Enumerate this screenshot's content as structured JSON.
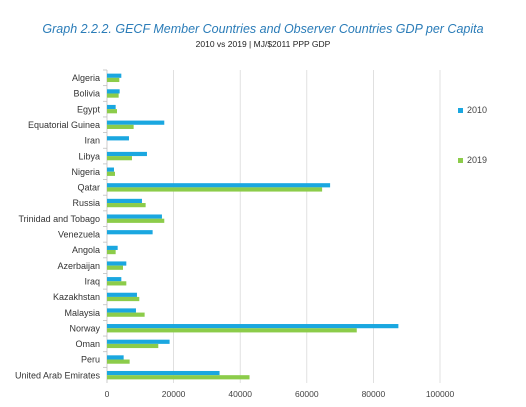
{
  "chart_data": {
    "type": "bar",
    "orientation": "horizontal",
    "title": "Graph 2.2.2. GECF Member Countries and Observer Countries GDP per Capita",
    "subtitle": "2010 vs 2019 | MJ/$2011 PPP GDP",
    "categories": [
      "Algeria",
      "Bolivia",
      "Egypt",
      "Equatorial Guinea",
      "Iran",
      "Libya",
      "Nigeria",
      "Qatar",
      "Russia",
      "Trinidad and Tobago",
      "Venezuela",
      "Angola",
      "Azerbaijan",
      "Iraq",
      "Kazakhstan",
      "Malaysia",
      "Norway",
      "Oman",
      "Peru",
      "United Arab Emirates"
    ],
    "series": [
      {
        "name": "2010",
        "color": "#1aa7e0",
        "values": [
          4300,
          3800,
          2600,
          17200,
          6600,
          12000,
          2100,
          67000,
          10500,
          16500,
          13700,
          3200,
          5800,
          4300,
          9000,
          8700,
          87500,
          18800,
          5000,
          33800
        ]
      },
      {
        "name": "2019",
        "color": "#8ccc4a",
        "values": [
          3700,
          3500,
          3000,
          8000,
          null,
          7500,
          2400,
          64600,
          11600,
          17200,
          null,
          2600,
          4800,
          5800,
          9700,
          11300,
          75000,
          15400,
          6800,
          42800
        ]
      }
    ],
    "xlim": [
      0,
      100000
    ],
    "xticks": [
      0,
      20000,
      40000,
      60000,
      80000,
      100000
    ],
    "xtick_labels": [
      "0",
      "20000",
      "40000",
      "60000",
      "80000",
      "100000"
    ],
    "xlabel": "",
    "ylabel": "",
    "grid": "vertical",
    "legend_position": "right"
  }
}
